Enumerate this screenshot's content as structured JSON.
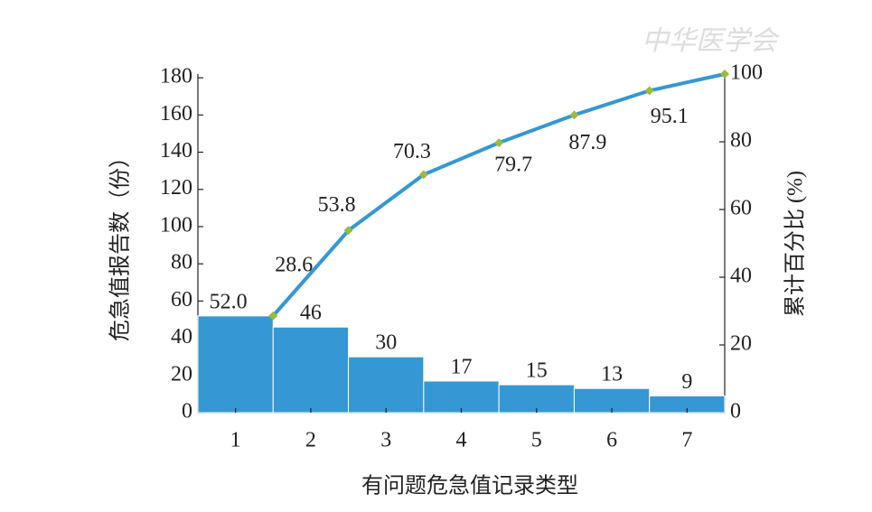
{
  "chart_data": {
    "type": "pareto",
    "watermark": "中华医学会",
    "xlabel": "有问题危急值记录类型",
    "ylabel": "危急值报告数（份）",
    "y2label": "累计百分比 (%)",
    "categories": [
      "1",
      "2",
      "3",
      "4",
      "5",
      "6",
      "7"
    ],
    "series": [
      {
        "values": [
          52,
          46,
          30,
          17,
          15,
          13,
          9
        ],
        "value_labels": [
          "52.0",
          "46",
          "30",
          "17",
          "15",
          "13",
          "9"
        ],
        "color": "#3597d3"
      },
      {
        "axis": "y2",
        "values": [
          28.6,
          53.8,
          70.3,
          79.7,
          87.9,
          95.1,
          100
        ],
        "value_labels": [
          "28.6",
          "53.8",
          "70.3",
          "79.7",
          "87.9",
          "95.1",
          null
        ],
        "color": "#3597d3",
        "marker_color": "#9dbb3c"
      }
    ],
    "ylim": [
      0,
      182
    ],
    "yticks": [
      0,
      20,
      40,
      60,
      80,
      100,
      120,
      140,
      160,
      180
    ],
    "y2lim": [
      0,
      100
    ],
    "y2ticks": [
      0,
      20,
      40,
      60,
      80,
      100
    ]
  }
}
